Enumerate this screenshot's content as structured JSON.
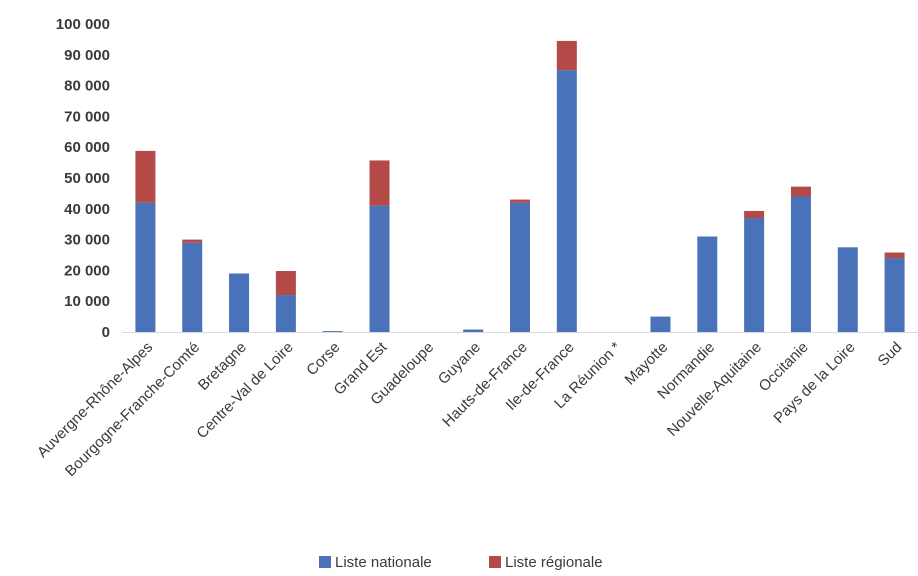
{
  "chart_data": {
    "type": "bar",
    "stacked": true,
    "title": "",
    "xlabel": "",
    "ylabel": "",
    "ylim": [
      0,
      100000
    ],
    "yticks": [
      0,
      10000,
      20000,
      30000,
      40000,
      50000,
      60000,
      70000,
      80000,
      90000,
      100000
    ],
    "ytick_labels": [
      "0",
      "10 000",
      "20 000",
      "30 000",
      "40 000",
      "50 000",
      "60 000",
      "70 000",
      "80 000",
      "90 000",
      "100 000"
    ],
    "grid": false,
    "legend_position": "bottom",
    "categories": [
      "Auvergne-Rhône-Alpes",
      "Bourgogne-Franche-Comté",
      "Bretagne",
      "Centre-Val de Loire",
      "Corse",
      "Grand Est",
      "Guadeloupe",
      "Guyane",
      "Hauts-de-France",
      "Ile-de-France",
      "La Réunion *",
      "Mayotte",
      "Normandie",
      "Nouvelle-Aquitaine",
      "Occitanie",
      "Pays de la Loire",
      "Sud"
    ],
    "series": [
      {
        "name": "Liste nationale",
        "color": "#4a72b8",
        "values": [
          42000,
          29000,
          19000,
          12000,
          300,
          41000,
          0,
          800,
          42000,
          85000,
          0,
          5000,
          31000,
          37000,
          44000,
          27500,
          24000
        ]
      },
      {
        "name": "Liste régionale",
        "color": "#b34a47",
        "values": [
          16800,
          1000,
          0,
          7800,
          0,
          14700,
          0,
          0,
          1000,
          9500,
          0,
          0,
          0,
          2300,
          3200,
          0,
          1800
        ]
      }
    ]
  }
}
